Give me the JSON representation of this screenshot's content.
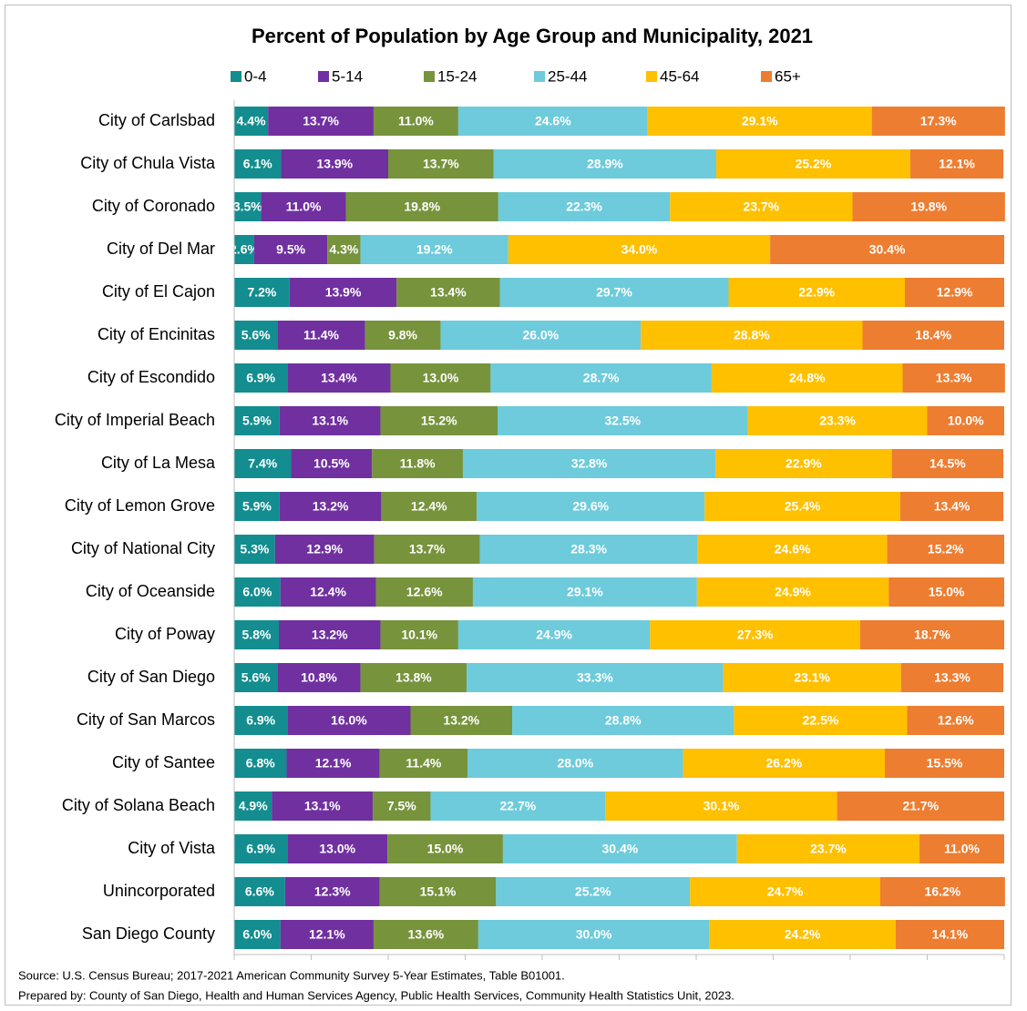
{
  "chart_data": {
    "type": "stacked_barh",
    "title": "Percent of Population by Age Group and Municipality, 2021",
    "categories": [
      "City of Carlsbad",
      "City of Chula Vista",
      "City of Coronado",
      "City of Del Mar",
      "City of El Cajon",
      "City of Encinitas",
      "City of Escondido",
      "City of Imperial Beach",
      "City of La Mesa",
      "City of Lemon Grove",
      "City of National City",
      "City of Oceanside",
      "City of Poway",
      "City of San Diego",
      "City of San Marcos",
      "City of Santee",
      "City of Solana Beach",
      "City of Vista",
      "Unincorporated",
      "San Diego County"
    ],
    "series": [
      {
        "name": "0-4",
        "color": "#138d8f",
        "values": [
          4.4,
          6.1,
          3.5,
          2.6,
          7.2,
          5.6,
          6.9,
          5.9,
          7.4,
          5.9,
          5.3,
          6.0,
          5.8,
          5.6,
          6.9,
          6.8,
          4.9,
          6.9,
          6.6,
          6.0
        ],
        "value_labels": [
          "4.4%",
          "6.1%",
          "3.5%",
          "2.6%",
          "7.2%",
          "5.6%",
          "6.9%",
          "5.9%",
          "7.4%",
          "5.9%",
          "5.3%",
          "6.0%",
          "5.8%",
          "5.6%",
          "6.9%",
          "6.8%",
          "4.9%",
          "6.9%",
          "6.6%",
          "6.0%"
        ]
      },
      {
        "name": "5-14",
        "color": "#7030a0",
        "values": [
          13.7,
          13.9,
          11.0,
          9.5,
          13.9,
          11.4,
          13.4,
          13.1,
          10.5,
          13.2,
          12.9,
          12.4,
          13.2,
          10.8,
          16.0,
          12.1,
          13.1,
          13.0,
          12.3,
          12.1
        ],
        "value_labels": [
          "13.7%",
          "13.9%",
          "11.0%",
          "9.5%",
          "13.9%",
          "11.4%",
          "13.4%",
          "13.1%",
          "10.5%",
          "13.2%",
          "12.9%",
          "12.4%",
          "13.2%",
          "10.8%",
          "16.0%",
          "12.1%",
          "13.1%",
          "13.0%",
          "12.3%",
          "12.1%"
        ]
      },
      {
        "name": "15-24",
        "color": "#77933c",
        "values": [
          11.0,
          13.7,
          19.8,
          4.3,
          13.4,
          9.8,
          13.0,
          15.2,
          11.8,
          12.4,
          13.7,
          12.6,
          10.1,
          13.8,
          13.2,
          11.4,
          7.5,
          15.0,
          15.1,
          13.6
        ],
        "value_labels": [
          "11.0%",
          "13.7%",
          "19.8%",
          "4.3%",
          "13.4%",
          "9.8%",
          "13.0%",
          "15.2%",
          "11.8%",
          "12.4%",
          "13.7%",
          "12.6%",
          "10.1%",
          "13.8%",
          "13.2%",
          "11.4%",
          "7.5%",
          "15.0%",
          "15.1%",
          "13.6%"
        ]
      },
      {
        "name": "25-44",
        "color": "#6dcbdb",
        "values": [
          24.6,
          28.9,
          22.3,
          19.2,
          29.7,
          26.0,
          28.7,
          32.5,
          32.8,
          29.6,
          28.3,
          29.1,
          24.9,
          33.3,
          28.8,
          28.0,
          22.7,
          30.4,
          25.2,
          30.0
        ],
        "value_labels": [
          "24.6%",
          "28.9%",
          "22.3%",
          "19.2%",
          "29.7%",
          "26.0%",
          "28.7%",
          "32.5%",
          "32.8%",
          "29.6%",
          "28.3%",
          "29.1%",
          "24.9%",
          "33.3%",
          "28.8%",
          "28.0%",
          "22.7%",
          "30.4%",
          "25.2%",
          "30.0%"
        ]
      },
      {
        "name": "45-64",
        "color": "#ffc000",
        "values": [
          29.1,
          25.2,
          23.7,
          34.0,
          22.9,
          28.8,
          24.8,
          23.3,
          22.9,
          25.4,
          24.6,
          24.9,
          27.3,
          23.1,
          22.5,
          26.2,
          30.1,
          23.7,
          24.7,
          24.2
        ],
        "value_labels": [
          "29.1%",
          "25.2%",
          "23.7%",
          "34.0%",
          "22.9%",
          "28.8%",
          "24.8%",
          "23.3%",
          "22.9%",
          "25.4%",
          "24.6%",
          "24.9%",
          "27.3%",
          "23.1%",
          "22.5%",
          "26.2%",
          "30.1%",
          "23.7%",
          "24.7%",
          "24.2%"
        ]
      },
      {
        "name": "65+",
        "color": "#ed7d31",
        "values": [
          17.3,
          12.1,
          19.8,
          30.4,
          12.9,
          18.4,
          13.3,
          10.0,
          14.5,
          13.4,
          15.2,
          15.0,
          18.7,
          13.3,
          12.6,
          15.5,
          21.7,
          11.0,
          16.2,
          14.1
        ],
        "value_labels": [
          "17.3%",
          "12.1%",
          "19.8%",
          "30.4%",
          "12.9%",
          "18.4%",
          "13.3%",
          "10.0%",
          "14.5%",
          "13.4%",
          "15.2%",
          "15.0%",
          "18.7%",
          "13.3%",
          "12.6%",
          "15.5%",
          "21.7%",
          "11.0%",
          "16.2%",
          "14.1%"
        ]
      }
    ],
    "xlim": [
      0,
      100
    ],
    "xticks": [
      0,
      10,
      20,
      30,
      40,
      50,
      60,
      70,
      80,
      90,
      100
    ],
    "notes": [
      "Source: U.S. Census Bureau; 2017-2021 American Community Survey 5-Year Estimates, Table B01001.",
      "Prepared by: County of San Diego, Health and Human Services Agency, Public Health Services, Community Health Statistics Unit, 2023."
    ]
  }
}
